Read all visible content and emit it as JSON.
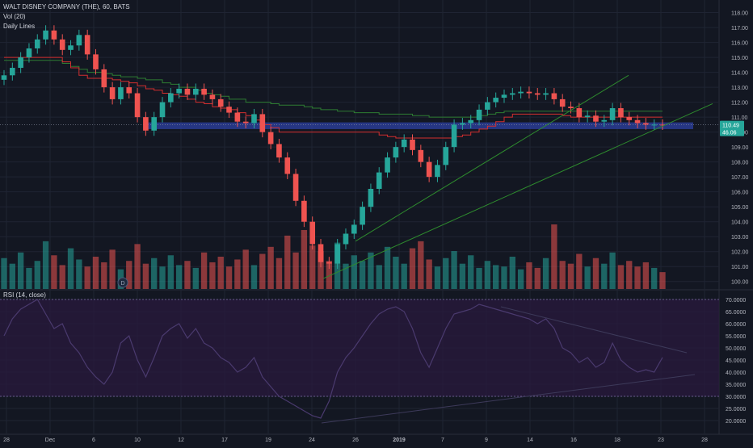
{
  "header": {
    "symbol_line": "WALT DISNEY COMPANY (THE), 60, BATS",
    "vol_label": "Vol (20)",
    "lines_label": "Daily Lines"
  },
  "rsi_pane": {
    "label": "RSI (14, close)"
  },
  "badges": {
    "price": "110.49",
    "volume": "46.06"
  },
  "colors": {
    "background": "#131722",
    "up": "#26a69a",
    "down": "#ef5350",
    "grid": "#1f2433",
    "zone": "#2c3f9c",
    "trendline": "#2e8b2e",
    "daily_red": "#d32f2f",
    "daily_green": "#2e7d32",
    "rsi_band": "#2a1a3e",
    "rsi_line": "#4a3a6e",
    "price_badge": "#26a69a",
    "volume_badge": "#26a69a"
  },
  "chart_data": [
    {
      "type": "candlestick",
      "title": "WALT DISNEY COMPANY (THE), 60, BATS",
      "x_tick_labels": [
        "28",
        "Dec",
        "6",
        "10",
        "12",
        "17",
        "19",
        "24",
        "26",
        "2019",
        "7",
        "9",
        "14",
        "16",
        "18",
        "23",
        "28"
      ],
      "y_tick_labels": [
        "100.00",
        "101.00",
        "102.00",
        "103.00",
        "104.00",
        "105.00",
        "106.00",
        "107.00",
        "108.00",
        "109.00",
        "110.00",
        "111.00",
        "112.00",
        "113.00",
        "114.00",
        "115.00",
        "116.00",
        "117.00",
        "118.00"
      ],
      "ylim": [
        99.5,
        118.3
      ],
      "grid": true,
      "last_price": 110.49,
      "support_zone": [
        110.2,
        110.65
      ],
      "close_series": [
        113.8,
        114.3,
        115.0,
        115.6,
        116.2,
        116.8,
        116.2,
        115.5,
        115.8,
        116.5,
        115.2,
        114.2,
        113.0,
        112.2,
        113.0,
        112.6,
        111.0,
        110.1,
        111.0,
        112.0,
        112.6,
        112.9,
        112.5,
        112.9,
        112.5,
        112.2,
        111.7,
        111.3,
        110.7,
        110.6,
        111.2,
        110.0,
        109.2,
        108.3,
        107.2,
        105.4,
        104.0,
        102.5,
        101.3,
        101.2,
        102.5,
        103.2,
        103.8,
        105.0,
        106.2,
        107.3,
        108.3,
        109.0,
        109.5,
        108.8,
        108.0,
        107.0,
        107.8,
        109.0,
        110.5,
        110.6,
        110.8,
        111.5,
        112.0,
        112.3,
        112.5,
        112.6,
        112.7,
        112.6,
        112.5,
        112.6,
        112.2,
        111.7,
        111.6,
        111.0,
        111.1,
        110.7,
        110.8,
        111.6,
        111.0,
        110.8,
        110.6,
        110.5,
        110.5,
        110.49
      ],
      "volume_series": [
        2.2,
        1.8,
        2.6,
        1.5,
        2.0,
        3.4,
        2.4,
        1.7,
        2.9,
        2.1,
        1.6,
        2.3,
        1.9,
        2.8,
        1.4,
        2.0,
        3.2,
        1.8,
        2.2,
        1.6,
        2.4,
        1.7,
        2.0,
        1.5,
        2.6,
        1.9,
        2.3,
        1.6,
        2.1,
        2.8,
        1.7,
        2.5,
        3.0,
        2.2,
        3.8,
        2.6,
        4.2,
        3.1,
        2.7,
        2.0,
        3.3,
        1.8,
        2.4,
        2.0,
        2.6,
        1.7,
        3.0,
        2.3,
        1.8,
        2.9,
        3.4,
        2.1,
        1.6,
        2.2,
        2.7,
        1.8,
        2.4,
        1.5,
        2.0,
        1.7,
        1.6,
        2.3,
        1.4,
        1.9,
        1.5,
        2.2,
        4.6,
        2.0,
        1.8,
        2.5,
        1.6,
        2.2,
        1.8,
        2.6,
        1.7,
        2.0,
        1.6,
        1.9,
        1.5,
        1.2
      ],
      "daily_green": [
        114.8,
        114.8,
        114.8,
        114.8,
        114.8,
        114.8,
        114.8,
        114.6,
        114.4,
        114.2,
        114.0,
        114.0,
        113.9,
        113.8,
        113.7,
        113.7,
        113.6,
        113.5,
        113.5,
        113.3,
        113.2,
        113.0,
        113.0,
        112.8,
        112.6,
        112.5,
        112.4,
        112.2,
        112.2,
        112.0,
        112.0,
        112.0,
        111.9,
        111.8,
        111.8,
        111.8,
        111.7,
        111.6,
        111.5,
        111.5,
        111.4,
        111.4,
        111.3,
        111.3,
        111.3,
        111.2,
        111.2,
        111.2,
        111.2,
        111.1,
        111.1,
        111.0,
        111.0,
        111.0,
        111.0,
        111.0,
        111.0,
        111.1,
        111.2,
        111.3,
        111.4,
        111.4,
        111.4,
        111.4,
        111.4,
        111.4,
        111.4,
        111.4,
        111.4,
        111.4,
        111.4,
        111.4,
        111.4,
        111.4,
        111.4,
        111.4,
        111.4,
        111.4,
        111.4,
        111.4
      ],
      "daily_red": [
        115.0,
        115.0,
        115.0,
        115.0,
        115.0,
        115.0,
        115.0,
        114.7,
        114.3,
        113.8,
        113.6,
        113.6,
        113.6,
        113.5,
        113.4,
        113.3,
        113.1,
        112.9,
        112.8,
        112.6,
        112.5,
        112.4,
        112.2,
        112.0,
        111.9,
        111.7,
        111.6,
        111.5,
        111.3,
        111.1,
        110.8,
        110.5,
        110.3,
        110.0,
        110.0,
        110.0,
        110.0,
        110.0,
        110.0,
        110.0,
        110.0,
        110.0,
        110.0,
        110.0,
        110.0,
        109.8,
        109.7,
        109.6,
        109.6,
        109.6,
        109.6,
        109.6,
        109.6,
        109.6,
        109.7,
        109.8,
        110.0,
        110.2,
        110.4,
        110.7,
        111.0,
        111.2,
        111.2,
        111.2,
        111.2,
        111.2,
        111.2,
        111.1,
        111.0,
        111.0,
        111.0,
        111.0,
        111.0,
        111.0,
        111.0,
        111.0,
        111.0,
        111.0,
        111.0,
        111.0
      ]
    },
    {
      "type": "line",
      "title": "RSI (14, close)",
      "y_tick_labels": [
        "20.0000",
        "25.0000",
        "30.0000",
        "35.0000",
        "40.0000",
        "45.0000",
        "50.0000",
        "55.0000",
        "60.0000",
        "65.0000",
        "70.0000"
      ],
      "ylim": [
        17,
        71
      ],
      "band": [
        30,
        70
      ],
      "values": [
        55,
        62,
        66,
        68,
        70,
        64,
        58,
        60,
        52,
        48,
        42,
        38,
        35,
        40,
        52,
        55,
        45,
        38,
        46,
        55,
        58,
        60,
        54,
        58,
        52,
        50,
        46,
        44,
        40,
        42,
        46,
        38,
        34,
        30,
        28,
        26,
        24,
        22,
        21,
        28,
        40,
        46,
        50,
        55,
        60,
        64,
        66,
        67,
        65,
        58,
        48,
        42,
        50,
        58,
        64,
        65,
        66,
        68,
        67,
        66,
        65,
        64,
        63,
        62,
        60,
        62,
        58,
        50,
        48,
        44,
        46,
        42,
        44,
        52,
        45,
        42,
        40,
        41,
        40,
        46.06
      ]
    }
  ]
}
